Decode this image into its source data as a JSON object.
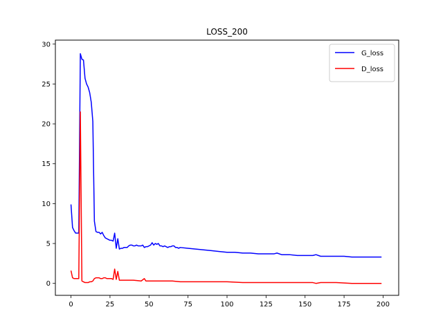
{
  "chart_data": {
    "type": "line",
    "title": "LOSS_200",
    "xlabel": "",
    "ylabel": "",
    "xlim": [
      -10,
      210
    ],
    "ylim": [
      -1.5,
      30.5
    ],
    "xticks": [
      0,
      25,
      50,
      75,
      100,
      125,
      150,
      175,
      200
    ],
    "yticks": [
      0,
      5,
      10,
      15,
      20,
      25,
      30
    ],
    "grid": false,
    "legend_position": "top-right",
    "series": [
      {
        "name": "G_loss",
        "color": "#0000ff",
        "x": [
          0,
          1,
          2,
          3,
          4,
          5,
          6,
          7,
          8,
          9,
          10,
          11,
          12,
          13,
          14,
          15,
          16,
          17,
          18,
          19,
          20,
          21,
          22,
          23,
          24,
          25,
          26,
          27,
          28,
          29,
          30,
          31,
          32,
          33,
          34,
          35,
          36,
          37,
          38,
          39,
          40,
          41,
          42,
          43,
          44,
          45,
          46,
          47,
          48,
          49,
          50,
          51,
          52,
          53,
          54,
          55,
          56,
          57,
          58,
          59,
          60,
          61,
          62,
          63,
          64,
          65,
          66,
          67,
          68,
          69,
          70,
          75,
          80,
          85,
          90,
          95,
          100,
          105,
          110,
          115,
          120,
          125,
          130,
          132,
          135,
          140,
          145,
          150,
          155,
          157,
          160,
          165,
          170,
          175,
          180,
          185,
          190,
          195,
          199
        ],
        "y": [
          9.9,
          7.0,
          6.6,
          6.3,
          6.3,
          6.3,
          28.8,
          28.1,
          28.0,
          25.7,
          25.0,
          24.6,
          23.9,
          22.7,
          20.3,
          7.8,
          6.5,
          6.4,
          6.4,
          6.2,
          6.4,
          6.0,
          5.7,
          5.6,
          5.5,
          5.4,
          5.4,
          5.3,
          6.3,
          4.4,
          5.6,
          4.3,
          4.4,
          4.4,
          4.5,
          4.5,
          4.5,
          4.7,
          4.8,
          4.8,
          4.7,
          4.7,
          4.8,
          4.7,
          4.7,
          4.7,
          4.8,
          4.5,
          4.6,
          4.6,
          4.7,
          4.8,
          5.1,
          4.8,
          5.0,
          4.9,
          5.0,
          4.7,
          4.7,
          4.6,
          4.7,
          4.6,
          4.5,
          4.6,
          4.6,
          4.7,
          4.7,
          4.5,
          4.5,
          4.4,
          4.5,
          4.4,
          4.3,
          4.2,
          4.1,
          4.0,
          3.9,
          3.9,
          3.8,
          3.8,
          3.7,
          3.7,
          3.7,
          3.8,
          3.6,
          3.6,
          3.5,
          3.5,
          3.5,
          3.6,
          3.4,
          3.4,
          3.4,
          3.4,
          3.3,
          3.3,
          3.3,
          3.3,
          3.3
        ]
      },
      {
        "name": "D_loss",
        "color": "#ff0000",
        "x": [
          0,
          1,
          2,
          3,
          4,
          5,
          6,
          7,
          8,
          9,
          10,
          11,
          12,
          13,
          14,
          15,
          16,
          17,
          18,
          19,
          20,
          21,
          22,
          23,
          24,
          25,
          26,
          27,
          28,
          29,
          30,
          31,
          32,
          33,
          34,
          35,
          40,
          45,
          47,
          48,
          50,
          55,
          60,
          65,
          70,
          75,
          80,
          90,
          100,
          110,
          120,
          130,
          140,
          150,
          155,
          157,
          160,
          170,
          180,
          190,
          199
        ],
        "y": [
          1.6,
          0.7,
          0.6,
          0.6,
          0.6,
          0.6,
          21.5,
          0.3,
          0.2,
          0.1,
          0.1,
          0.1,
          0.2,
          0.2,
          0.3,
          0.6,
          0.7,
          0.7,
          0.7,
          0.6,
          0.6,
          0.7,
          0.7,
          0.6,
          0.6,
          0.6,
          0.6,
          0.5,
          1.8,
          0.5,
          1.5,
          0.4,
          0.4,
          0.4,
          0.4,
          0.4,
          0.4,
          0.3,
          0.6,
          0.3,
          0.3,
          0.3,
          0.3,
          0.3,
          0.2,
          0.2,
          0.2,
          0.2,
          0.2,
          0.1,
          0.1,
          0.1,
          0.1,
          0.1,
          0.1,
          0.0,
          0.1,
          0.1,
          0.0,
          0.0,
          0.0
        ]
      }
    ]
  }
}
